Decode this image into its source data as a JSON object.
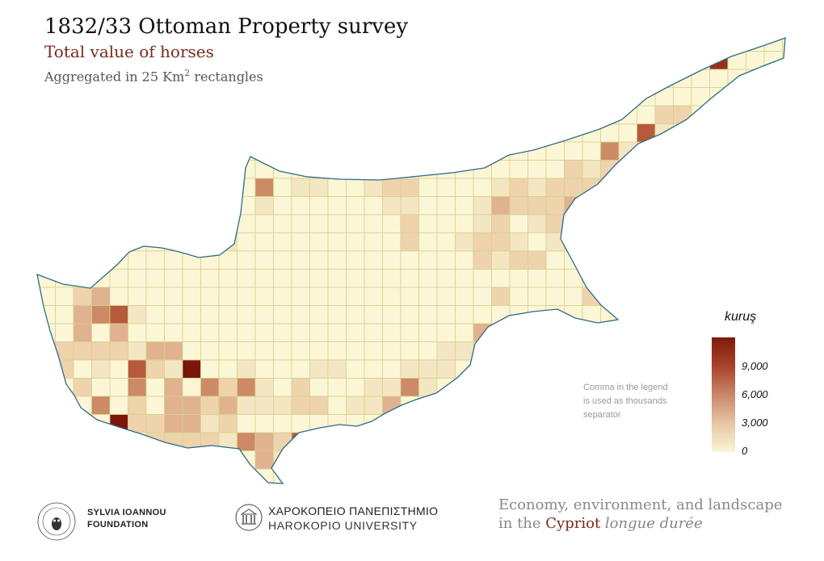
{
  "header": {
    "title": "1832/33 Ottoman Property survey",
    "subtitle": "Total value of horses",
    "note_prefix": "Aggregated in 25 Km",
    "note_sup": "2",
    "note_suffix": " rectangles"
  },
  "legend": {
    "title": "kuruş",
    "ticks": [
      "9,000",
      "6,000",
      "3,000",
      "0"
    ],
    "tick_values": [
      9000,
      6000,
      3000,
      0
    ],
    "max_value": 12000,
    "colors": {
      "low": "#fbf6d6",
      "mid": "#c9876a",
      "high": "#7d1b0b"
    }
  },
  "note": {
    "line1": "Comma in the legend",
    "line2": "is used as thousands",
    "line3": "separator"
  },
  "map": {
    "region": "Cyprus",
    "grid": "5 km x 5 km cells",
    "coastline_color": "#2e6a89",
    "gridline_color": "#d8d28a"
  },
  "footer": {
    "sif_line1": "SYLVIA IOANNOU",
    "sif_line2": "FOUNDATION",
    "hu_greek": "ΧΑΡΟΚΟΠΕΙΟ ΠΑΝΕΠΙΣΤΗΜΙΟ",
    "hu_english": "HAROKOPIO UNIVERSITY",
    "project_line1": "Economy, environment, and landscape",
    "project_in": "in the ",
    "project_cypriot": "Cypriot",
    "project_rest": " longue durée"
  }
}
